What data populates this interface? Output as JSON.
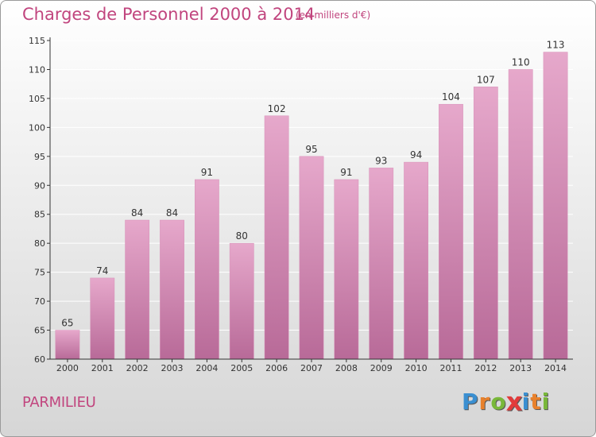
{
  "title": "Charges de Personnel 2000 à 2014",
  "subtitle": "(en milliers d'€)",
  "location": "PARMILIEU",
  "logo": {
    "text": "Proxiti",
    "letters": [
      {
        "char": "P",
        "color": "#3a8fd1"
      },
      {
        "char": "r",
        "color": "#e8812c"
      },
      {
        "char": "o",
        "color": "#79b83a"
      },
      {
        "char": "x",
        "color": "#e23b3b"
      },
      {
        "char": "i",
        "color": "#3a8fd1"
      },
      {
        "char": "t",
        "color": "#e8812c"
      },
      {
        "char": "i",
        "color": "#79b83a"
      }
    ]
  },
  "colors": {
    "bar_top": "#e6a8cb",
    "bar_bottom": "#b86a98",
    "accent": "#c1457e",
    "grid": "#ffffff",
    "axis": "#333333"
  },
  "chart_data": {
    "type": "bar",
    "title": "Charges de Personnel 2000 à 2014",
    "subtitle": "(en milliers d'€)",
    "categories": [
      "2000",
      "2001",
      "2002",
      "2003",
      "2004",
      "2005",
      "2006",
      "2007",
      "2008",
      "2009",
      "2010",
      "2011",
      "2012",
      "2013",
      "2014"
    ],
    "values": [
      65,
      74,
      84,
      84,
      91,
      80,
      102,
      95,
      91,
      93,
      94,
      104,
      107,
      110,
      113
    ],
    "ylim": [
      60,
      115
    ],
    "yticks": [
      60,
      65,
      70,
      75,
      80,
      85,
      90,
      95,
      100,
      105,
      110,
      115
    ],
    "xlabel": "",
    "ylabel": "",
    "grid": true,
    "data_labels": true
  }
}
